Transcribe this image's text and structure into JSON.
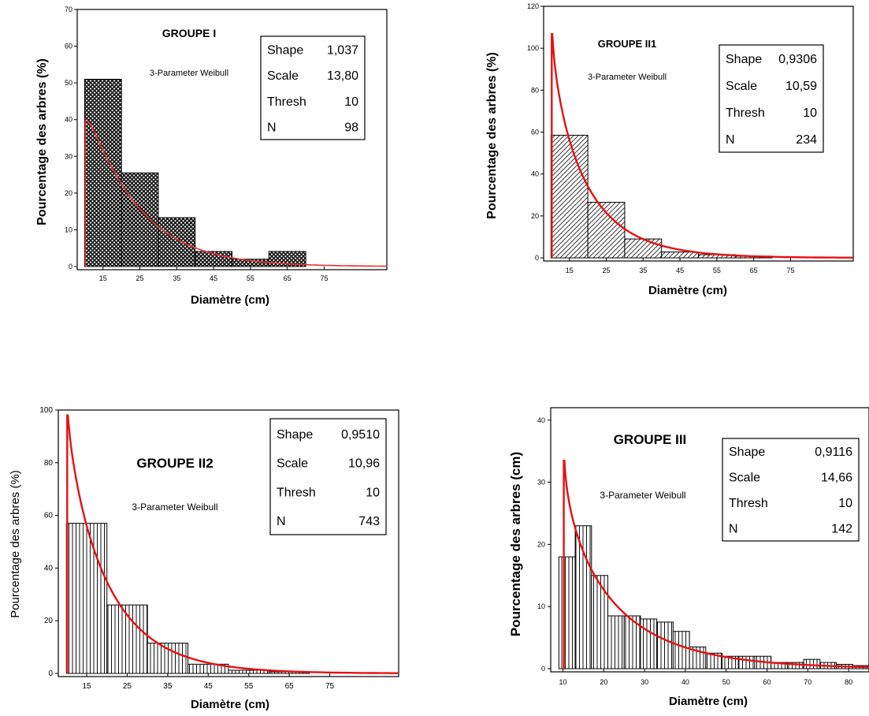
{
  "chart_data": [
    {
      "type": "bar",
      "title": "GROUPE I",
      "subtitle": "3-Parameter Weibull",
      "xlabel": "Diamètre (cm)",
      "ylabel": "Pourcentage des arbres (%)",
      "ylim": [
        0,
        70
      ],
      "yticks": [
        "0",
        "10",
        "20",
        "30",
        "40",
        "50",
        "60",
        "70"
      ],
      "xticks": [
        "15",
        "25",
        "35",
        "45",
        "55",
        "65",
        "75"
      ],
      "bins": [
        [
          10,
          20
        ],
        [
          20,
          30
        ],
        [
          30,
          40
        ],
        [
          40,
          50
        ],
        [
          50,
          60
        ],
        [
          60,
          70
        ]
      ],
      "values": [
        51,
        25.5,
        13.3,
        4.1,
        2.0,
        4.1
      ],
      "hatch": "cross",
      "stats": [
        {
          "label": "Shape",
          "value": "1,037"
        },
        {
          "label": "Scale",
          "value": "13,80"
        },
        {
          "label": "Thresh",
          "value": "10"
        },
        {
          "label": "N",
          "value": "98"
        }
      ],
      "fit": {
        "shape": 1.037,
        "scale": 13.8,
        "thresh": 10,
        "binwidth": 10,
        "color": "#e83030"
      }
    },
    {
      "type": "bar",
      "title": "GROUPE II1",
      "subtitle": "3-Parameter Weibull",
      "xlabel": "Diamètre (cm)",
      "ylabel": "Pourcentage des arbres (%)",
      "ylim": [
        0,
        120
      ],
      "yticks": [
        "0",
        "20",
        "40",
        "60",
        "80",
        "100",
        "120"
      ],
      "xticks": [
        "15",
        "25",
        "35",
        "45",
        "55",
        "65",
        "75"
      ],
      "bins": [
        [
          10,
          20
        ],
        [
          20,
          30
        ],
        [
          30,
          40
        ],
        [
          40,
          50
        ],
        [
          50,
          60
        ],
        [
          60,
          70
        ]
      ],
      "values": [
        58.5,
        26.5,
        9,
        2.8,
        1.5,
        0.8
      ],
      "hatch": "diag",
      "stats": [
        {
          "label": "Shape",
          "value": "0,9306"
        },
        {
          "label": "Scale",
          "value": "10,59"
        },
        {
          "label": "Thresh",
          "value": "10"
        },
        {
          "label": "N",
          "value": "234"
        }
      ],
      "fit": {
        "shape": 0.9306,
        "scale": 10.59,
        "thresh": 10,
        "binwidth": 10,
        "color": "#e81010"
      }
    },
    {
      "type": "bar",
      "title": "GROUPE II2",
      "subtitle": "3-Parameter Weibull",
      "xlabel": "Diamètre (cm)",
      "ylabel": "Pourcentage des arbres (%)",
      "ylim": [
        0,
        100
      ],
      "yticks": [
        "0",
        "20",
        "40",
        "60",
        "80",
        "100"
      ],
      "xticks": [
        "15",
        "25",
        "35",
        "45",
        "55",
        "65",
        "75"
      ],
      "bins": [
        [
          10,
          20
        ],
        [
          20,
          30
        ],
        [
          30,
          40
        ],
        [
          40,
          50
        ],
        [
          50,
          60
        ],
        [
          60,
          70
        ]
      ],
      "values": [
        57,
        26,
        11.5,
        3.5,
        1.2,
        0.6
      ],
      "hatch": "vert",
      "stats": [
        {
          "label": "Shape",
          "value": "0,9510"
        },
        {
          "label": "Scale",
          "value": "10,96"
        },
        {
          "label": "Thresh",
          "value": "10"
        },
        {
          "label": "N",
          "value": "743"
        }
      ],
      "fit": {
        "shape": 0.951,
        "scale": 10.96,
        "thresh": 10,
        "binwidth": 10,
        "color": "#e81010"
      }
    },
    {
      "type": "bar",
      "title": "GROUPE III",
      "subtitle": "3-Parameter Weibull",
      "xlabel": "Diamètre (cm)",
      "ylabel": "Pourcentage des arbres (cm)",
      "ylim": [
        0,
        42
      ],
      "yticks": [
        "0",
        "10",
        "20",
        "30",
        "40"
      ],
      "xticks": [
        "10",
        "20",
        "30",
        "40",
        "50",
        "60",
        "70",
        "80"
      ],
      "bins": [
        [
          9,
          13
        ],
        [
          13,
          17
        ],
        [
          17,
          21
        ],
        [
          21,
          25
        ],
        [
          25,
          29
        ],
        [
          29,
          33
        ],
        [
          33,
          37
        ],
        [
          37,
          41
        ],
        [
          41,
          45
        ],
        [
          45,
          49
        ],
        [
          49,
          53
        ],
        [
          53,
          57
        ],
        [
          57,
          61
        ],
        [
          61,
          65
        ],
        [
          65,
          69
        ],
        [
          69,
          73
        ],
        [
          73,
          77
        ],
        [
          77,
          81
        ],
        [
          81,
          85
        ]
      ],
      "values": [
        18,
        23,
        15,
        8.5,
        8.5,
        8,
        7.5,
        6,
        3.5,
        2.5,
        2,
        2,
        2,
        1,
        1,
        1.5,
        1,
        0.7,
        0.5
      ],
      "hatch": "vert",
      "stats": [
        {
          "label": "Shape",
          "value": "0,9116"
        },
        {
          "label": "Scale",
          "value": "14,66"
        },
        {
          "label": "Thresh",
          "value": "10"
        },
        {
          "label": "N",
          "value": "142"
        }
      ],
      "fit": {
        "shape": 0.9116,
        "scale": 14.66,
        "thresh": 10,
        "binwidth": 4,
        "color": "#e81010"
      }
    }
  ]
}
